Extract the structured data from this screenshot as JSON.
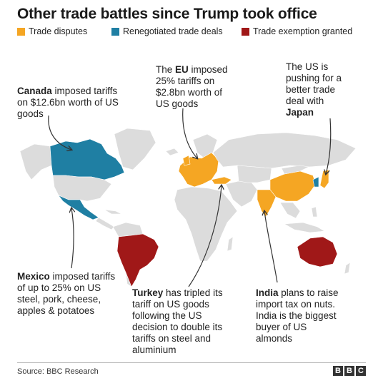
{
  "title": "Other trade battles since Trump took office",
  "legend": [
    {
      "label": "Trade disputes",
      "color": "#f5a623"
    },
    {
      "label": "Renegotiated trade deals",
      "color": "#1f7fa3"
    },
    {
      "label": "Trade exemption granted",
      "color": "#a01818"
    }
  ],
  "colors": {
    "land": "#dcdcdc",
    "dispute": "#f5a623",
    "renegotiated": "#1f7fa3",
    "exemption": "#a01818"
  },
  "annotations": {
    "canada": {
      "bold": "Canada",
      "text": " imposed tariffs on $12.6bn worth of US goods"
    },
    "eu": {
      "pre": "The ",
      "bold": "EU",
      "text": " imposed 25% tariffs on $2.8bn worth of US goods"
    },
    "japan": {
      "pre": "The US is pushing for a better trade deal with ",
      "bold": "Japan"
    },
    "mexico": {
      "bold": "Mexico",
      "text": " imposed tariffs of up to 25% on US steel, pork, cheese, apples & potatoes"
    },
    "turkey": {
      "bold": "Turkey",
      "text": " has tripled its tariff on US goods following the US decision to double its tariffs on steel and aluminium"
    },
    "india": {
      "bold": "India",
      "text": " plans to raise import tax on nuts. India is the biggest buyer of US almonds"
    }
  },
  "source": "Source: BBC Research",
  "logo": [
    "B",
    "B",
    "C"
  ]
}
